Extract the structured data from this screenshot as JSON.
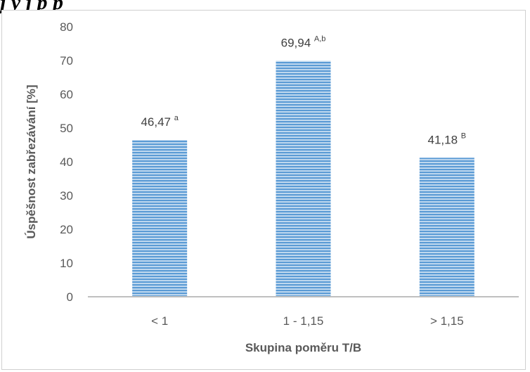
{
  "caption": "j     y  j              p                              p",
  "chart_data": {
    "type": "bar",
    "categories": [
      "< 1",
      "1 - 1,15",
      "> 1,15"
    ],
    "values": [
      46.47,
      69.94,
      41.18
    ],
    "value_labels": [
      "46,47",
      "69,94",
      "41,18"
    ],
    "superscripts": [
      "a",
      "A,b",
      "B"
    ],
    "xlabel": "Skupina poměru T/B",
    "ylabel": "Úspěšnost zabřezávání [%]",
    "ylim": [
      0,
      80
    ],
    "yticks": [
      0,
      10,
      20,
      30,
      40,
      50,
      60,
      70,
      80
    ],
    "grid": false,
    "bar_color": "#5b9bd5",
    "bar_stripe_color": "#ffffff",
    "axis_color": "#bfbfbf"
  }
}
